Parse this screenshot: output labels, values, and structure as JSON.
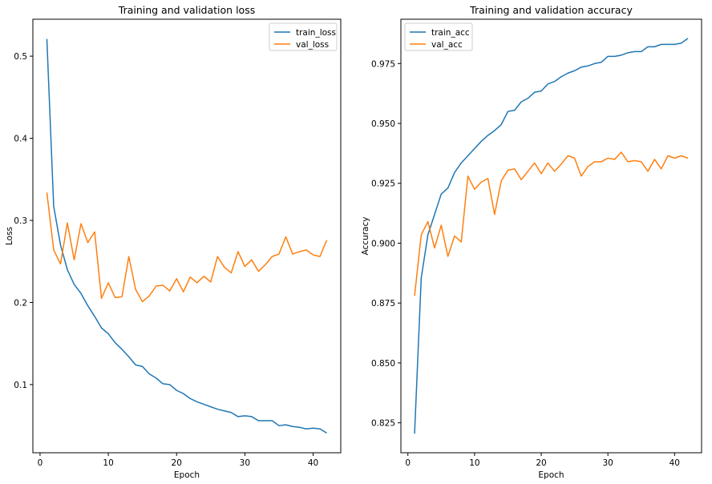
{
  "colors": {
    "train": "#1f77b4",
    "val": "#ff7f0e"
  },
  "chart_data": [
    {
      "type": "line",
      "title": "Training and validation loss",
      "xlabel": "Epoch",
      "ylabel": "Loss",
      "xlim": [
        -1.05,
        44.05
      ],
      "ylim": [
        0.017,
        0.545
      ],
      "xticks": [
        0,
        10,
        20,
        30,
        40
      ],
      "yticks": [
        0.1,
        0.2,
        0.3,
        0.4,
        0.5
      ],
      "ytick_labels": [
        "0.1",
        "0.2",
        "0.3",
        "0.4",
        "0.5"
      ],
      "legend": "top-right",
      "grid": false,
      "x": [
        1,
        2,
        3,
        4,
        5,
        6,
        7,
        8,
        9,
        10,
        11,
        12,
        13,
        14,
        15,
        16,
        17,
        18,
        19,
        20,
        21,
        22,
        23,
        24,
        25,
        26,
        27,
        28,
        29,
        30,
        31,
        32,
        33,
        34,
        35,
        36,
        37,
        38,
        39,
        40,
        41,
        42
      ],
      "series": [
        {
          "name": "train_loss",
          "color": "#1f77b4",
          "values": [
            0.521,
            0.317,
            0.27,
            0.24,
            0.222,
            0.211,
            0.196,
            0.183,
            0.169,
            0.162,
            0.151,
            0.143,
            0.134,
            0.124,
            0.122,
            0.113,
            0.108,
            0.101,
            0.1,
            0.093,
            0.089,
            0.083,
            0.079,
            0.076,
            0.073,
            0.07,
            0.068,
            0.066,
            0.061,
            0.062,
            0.061,
            0.056,
            0.056,
            0.056,
            0.05,
            0.051,
            0.049,
            0.048,
            0.046,
            0.047,
            0.046,
            0.041
          ]
        },
        {
          "name": "val_loss",
          "color": "#ff7f0e",
          "values": [
            0.334,
            0.264,
            0.247,
            0.297,
            0.252,
            0.296,
            0.273,
            0.286,
            0.205,
            0.224,
            0.206,
            0.207,
            0.256,
            0.216,
            0.201,
            0.208,
            0.22,
            0.221,
            0.214,
            0.229,
            0.213,
            0.231,
            0.224,
            0.232,
            0.225,
            0.256,
            0.243,
            0.236,
            0.262,
            0.244,
            0.252,
            0.238,
            0.246,
            0.256,
            0.259,
            0.28,
            0.259,
            0.262,
            0.264,
            0.258,
            0.256,
            0.276
          ]
        }
      ]
    },
    {
      "type": "line",
      "title": "Training and validation accuracy",
      "xlabel": "Epoch",
      "ylabel": "Accuracy",
      "xlim": [
        -1.05,
        44.05
      ],
      "ylim": [
        0.8125,
        0.9935
      ],
      "xticks": [
        0,
        10,
        20,
        30,
        40
      ],
      "yticks": [
        0.825,
        0.85,
        0.875,
        0.9,
        0.925,
        0.95,
        0.975
      ],
      "ytick_labels": [
        "0.825",
        "0.850",
        "0.875",
        "0.900",
        "0.925",
        "0.950",
        "0.975"
      ],
      "legend": "top-left",
      "grid": false,
      "x": [
        1,
        2,
        3,
        4,
        5,
        6,
        7,
        8,
        9,
        10,
        11,
        12,
        13,
        14,
        15,
        16,
        17,
        18,
        19,
        20,
        21,
        22,
        23,
        24,
        25,
        26,
        27,
        28,
        29,
        30,
        31,
        32,
        33,
        34,
        35,
        36,
        37,
        38,
        39,
        40,
        41,
        42
      ],
      "series": [
        {
          "name": "train_acc",
          "color": "#1f77b4",
          "values": [
            0.8205,
            0.8855,
            0.9035,
            0.912,
            0.9205,
            0.923,
            0.9295,
            0.9335,
            0.9365,
            0.9395,
            0.9425,
            0.945,
            0.947,
            0.9495,
            0.955,
            0.9555,
            0.959,
            0.9605,
            0.963,
            0.9635,
            0.9665,
            0.9675,
            0.9695,
            0.971,
            0.972,
            0.9735,
            0.974,
            0.975,
            0.9755,
            0.978,
            0.978,
            0.9785,
            0.9795,
            0.98,
            0.98,
            0.982,
            0.982,
            0.983,
            0.983,
            0.983,
            0.9835,
            0.9855
          ]
        },
        {
          "name": "val_acc",
          "color": "#ff7f0e",
          "values": [
            0.878,
            0.9035,
            0.909,
            0.898,
            0.9075,
            0.8945,
            0.903,
            0.9005,
            0.928,
            0.9225,
            0.9255,
            0.927,
            0.912,
            0.926,
            0.9305,
            0.931,
            0.9265,
            0.93,
            0.9335,
            0.929,
            0.9335,
            0.93,
            0.933,
            0.9365,
            0.9355,
            0.928,
            0.932,
            0.934,
            0.934,
            0.9355,
            0.935,
            0.938,
            0.934,
            0.9345,
            0.934,
            0.93,
            0.935,
            0.931,
            0.9365,
            0.9355,
            0.9365,
            0.9355
          ]
        }
      ]
    }
  ]
}
